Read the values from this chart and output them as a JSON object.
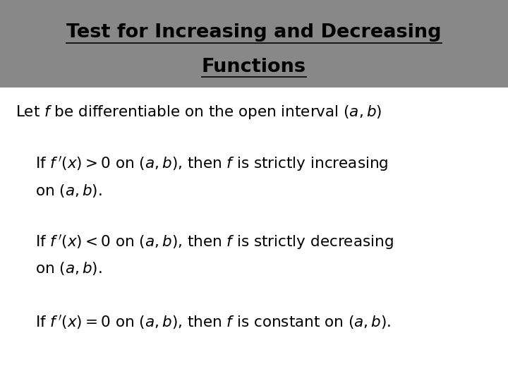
{
  "title_line1": "Test for Increasing and Decreasing",
  "title_line2": "Functions",
  "title_bg_color": "#888888",
  "title_text_color": "#000000",
  "body_bg_color": "#ffffff",
  "figsize": [
    7.2,
    5.4
  ],
  "dpi": 100
}
